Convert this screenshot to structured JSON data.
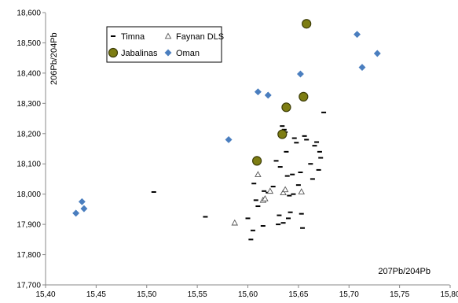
{
  "chart_data": {
    "type": "scatter",
    "xlabel": "207Pb/204Pb",
    "ylabel": "206Pb/204Pb",
    "xlim": [
      15.4,
      15.8
    ],
    "ylim": [
      17700,
      18600
    ],
    "x_ticks": [
      15.4,
      15.45,
      15.5,
      15.55,
      15.6,
      15.65,
      15.7,
      15.75,
      15.8
    ],
    "x_tick_labels": [
      "15,40",
      "15,45",
      "15,50",
      "15,55",
      "15,60",
      "15,65",
      "15,70",
      "15,75",
      "15,80"
    ],
    "y_ticks": [
      17700,
      17800,
      17900,
      18000,
      18100,
      18200,
      18300,
      18400,
      18500,
      18600
    ],
    "y_tick_labels": [
      "17,700",
      "17,800",
      "17,900",
      "18,000",
      "18,100",
      "18,200",
      "18,300",
      "18,400",
      "18,500",
      "18,600"
    ],
    "grid": false,
    "legend": {
      "placement": "top-left",
      "columns": 2
    },
    "series": [
      {
        "name": "Timna",
        "marker": "dash",
        "color": "#000000",
        "points": [
          [
            15.507,
            18007
          ],
          [
            15.558,
            17925
          ],
          [
            15.6,
            17920
          ],
          [
            15.603,
            17850
          ],
          [
            15.605,
            17880
          ],
          [
            15.606,
            18035
          ],
          [
            15.608,
            17980
          ],
          [
            15.61,
            17960
          ],
          [
            15.615,
            17895
          ],
          [
            15.616,
            18010
          ],
          [
            15.62,
            18005
          ],
          [
            15.625,
            18025
          ],
          [
            15.628,
            18110
          ],
          [
            15.63,
            17900
          ],
          [
            15.631,
            17930
          ],
          [
            15.632,
            18090
          ],
          [
            15.634,
            18225
          ],
          [
            15.635,
            17905
          ],
          [
            15.636,
            18213
          ],
          [
            15.637,
            18205
          ],
          [
            15.638,
            18140
          ],
          [
            15.639,
            18060
          ],
          [
            15.64,
            17920
          ],
          [
            15.641,
            17995
          ],
          [
            15.642,
            17940
          ],
          [
            15.644,
            18065
          ],
          [
            15.645,
            18000
          ],
          [
            15.646,
            18185
          ],
          [
            15.648,
            18170
          ],
          [
            15.65,
            18030
          ],
          [
            15.652,
            18072
          ],
          [
            15.653,
            17935
          ],
          [
            15.654,
            17888
          ],
          [
            15.656,
            18192
          ],
          [
            15.658,
            18180
          ],
          [
            15.662,
            18100
          ],
          [
            15.664,
            18050
          ],
          [
            15.666,
            18160
          ],
          [
            15.668,
            18172
          ],
          [
            15.67,
            18080
          ],
          [
            15.671,
            18140
          ],
          [
            15.672,
            18120
          ],
          [
            15.675,
            18270
          ]
        ]
      },
      {
        "name": "Faynan DLS",
        "marker": "triangle",
        "color": "#555555",
        "points": [
          [
            15.587,
            17905
          ],
          [
            15.61,
            18065
          ],
          [
            15.615,
            17980
          ],
          [
            15.617,
            17985
          ],
          [
            15.622,
            18010
          ],
          [
            15.635,
            18005
          ],
          [
            15.637,
            18015
          ],
          [
            15.653,
            18008
          ]
        ]
      },
      {
        "name": "Jabalinas",
        "marker": "circle",
        "color": "#7d7d12",
        "points": [
          [
            15.609,
            18110
          ],
          [
            15.634,
            18198
          ],
          [
            15.638,
            18287
          ],
          [
            15.655,
            18322
          ],
          [
            15.658,
            18563
          ]
        ]
      },
      {
        "name": "Oman",
        "marker": "diamond",
        "color": "#4a7ebf",
        "points": [
          [
            15.43,
            17937
          ],
          [
            15.436,
            17975
          ],
          [
            15.438,
            17952
          ],
          [
            15.581,
            18180
          ],
          [
            15.61,
            18338
          ],
          [
            15.62,
            18327
          ],
          [
            15.652,
            18397
          ],
          [
            15.708,
            18528
          ],
          [
            15.713,
            18419
          ],
          [
            15.728,
            18465
          ]
        ]
      }
    ]
  }
}
